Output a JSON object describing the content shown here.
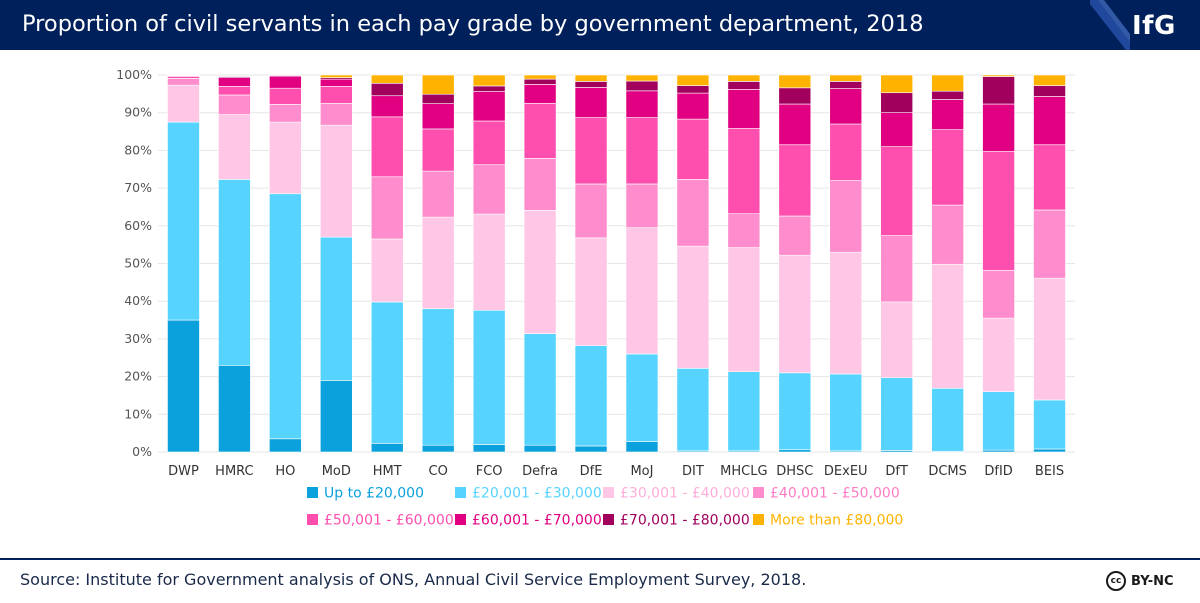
{
  "header": {
    "title": "Proportion of civil servants in each pay grade by government department, 2018",
    "logo": "IfG"
  },
  "footer": {
    "source": "Source: Institute for Government analysis of ONS, Annual Civil Service Employment Survey, 2018.",
    "license_icon": "cc",
    "license": "BY-NC"
  },
  "colors": {
    "header_bg": "#00205b",
    "grid": "#e6e6e6",
    "series": [
      "#0aa1dc",
      "#56d4ff",
      "#ffc6e6",
      "#ff8ccc",
      "#ff4fae",
      "#e00081",
      "#a1005c",
      "#ffb300"
    ],
    "legend_text": [
      "#0aa1dc",
      "#56d4ff",
      "#ffaedb",
      "#ff7cc4",
      "#ff4fae",
      "#e00081",
      "#a1005c",
      "#ffb300"
    ]
  },
  "chart_data": {
    "type": "bar",
    "stacked": true,
    "title": "Proportion of civil servants in each pay grade by government department, 2018",
    "xlabel": "",
    "ylabel": "",
    "ylim": [
      0,
      100
    ],
    "yticks": [
      "0%",
      "10%",
      "20%",
      "30%",
      "40%",
      "50%",
      "60%",
      "70%",
      "80%",
      "90%",
      "100%"
    ],
    "legend_position": "bottom",
    "categories": [
      "DWP",
      "HMRC",
      "HO",
      "MoD",
      "HMT",
      "CO",
      "FCO",
      "Defra",
      "DfE",
      "MoJ",
      "DIT",
      "MHCLG",
      "DHSC",
      "DExEU",
      "DfT",
      "DCMS",
      "DfID",
      "BEIS"
    ],
    "series": [
      {
        "name": "Up to £20,000",
        "values": [
          35,
          23,
          3.5,
          19,
          2.3,
          1.8,
          2,
          1.8,
          1.6,
          2.8,
          0.3,
          0.3,
          0.6,
          0.3,
          0.4,
          0.2,
          0.5,
          0.8
        ]
      },
      {
        "name": "£20,001 - £30,000",
        "values": [
          52.5,
          49.3,
          65,
          38,
          37.5,
          36.2,
          35.6,
          29.6,
          26.6,
          23.2,
          21.9,
          21,
          20.4,
          20.4,
          19.3,
          16.7,
          15.5,
          13
        ]
      },
      {
        "name": "£30,001 - £40,000",
        "values": [
          9.8,
          17.2,
          19,
          29.7,
          16.7,
          24.3,
          25.5,
          32.7,
          28.6,
          33.5,
          32.4,
          32.9,
          31.2,
          32.3,
          20.1,
          32.9,
          19.5,
          32.3
        ]
      },
      {
        "name": "£40,001 - £50,000",
        "values": [
          1.8,
          5.2,
          4.7,
          5.8,
          16.5,
          12.2,
          13.1,
          13.8,
          14.3,
          11.6,
          17.7,
          9,
          10.4,
          19,
          17.6,
          15.7,
          12.7,
          18.1
        ]
      },
      {
        "name": "£50,001 - £60,000",
        "values": [
          0.5,
          2.3,
          4.3,
          4.5,
          15.9,
          11.2,
          11.6,
          14.6,
          17.6,
          17.6,
          16,
          22.6,
          18.9,
          15,
          23.6,
          20,
          31.5,
          17.3
        ]
      },
      {
        "name": "£60,001 - £70,000",
        "values": [
          0.2,
          2.3,
          3.2,
          1.9,
          5.6,
          6.7,
          7.8,
          5,
          8,
          7.1,
          6.9,
          10.4,
          10.8,
          9.4,
          9,
          8,
          12.6,
          12.8
        ]
      },
      {
        "name": "£70,001 - £80,000",
        "values": [
          0.1,
          0.3,
          0.2,
          0.4,
          3.3,
          2.5,
          1.5,
          1.4,
          1.6,
          2.6,
          2,
          2.1,
          4.3,
          1.9,
          5.3,
          2.2,
          7.3,
          2.9
        ]
      },
      {
        "name": "More than £80,000",
        "values": [
          0.1,
          0.1,
          0.1,
          0.7,
          2.2,
          5.1,
          2.9,
          1.1,
          1.7,
          1.6,
          2.8,
          1.7,
          3.4,
          1.7,
          4.7,
          4.3,
          0.4,
          2.8
        ]
      }
    ]
  }
}
